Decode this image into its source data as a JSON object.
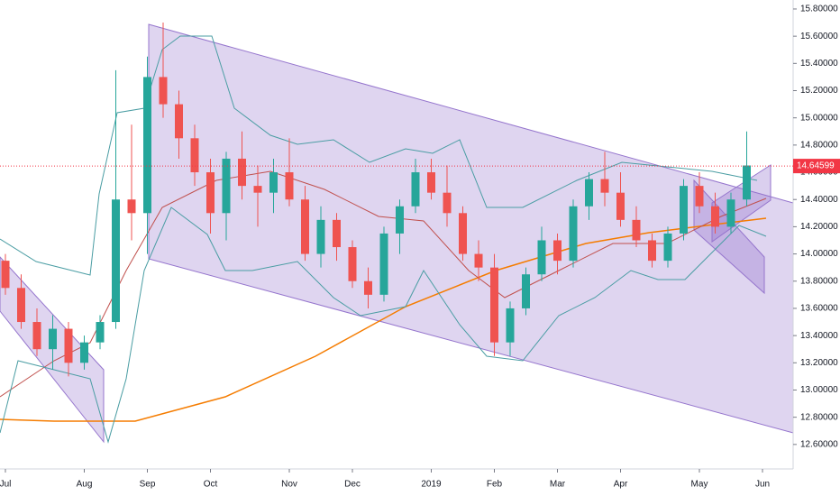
{
  "chart_data": {
    "type": "candlestick",
    "categories": [
      "Jul",
      null,
      null,
      null,
      null,
      "Aug",
      null,
      null,
      null,
      "Sep",
      null,
      null,
      null,
      "Oct",
      null,
      null,
      null,
      null,
      "Nov",
      null,
      null,
      null,
      "Dec",
      null,
      null,
      null,
      null,
      "2019",
      null,
      null,
      null,
      "Feb",
      null,
      null,
      null,
      "Mar",
      null,
      null,
      null,
      "Apr",
      null,
      null,
      null,
      null,
      "May",
      null,
      null,
      null,
      "Jun"
    ],
    "open": [
      13.95,
      13.75,
      13.5,
      13.3,
      13.45,
      13.2,
      13.35,
      13.5,
      14.4,
      14.3,
      15.3,
      15.1,
      14.85,
      14.6,
      14.3,
      14.7,
      14.5,
      14.45,
      14.6,
      14.4,
      14.0,
      14.25,
      14.05,
      13.8,
      13.7,
      14.15,
      14.35,
      14.6,
      14.45,
      14.3,
      14.0,
      13.9,
      13.35,
      13.6,
      13.85,
      14.1,
      13.95,
      14.35,
      14.55,
      14.45,
      14.25,
      14.1,
      13.95,
      14.15,
      14.5,
      14.35,
      14.2,
      14.4,
      null
    ],
    "high": [
      14.0,
      13.85,
      13.6,
      13.55,
      13.5,
      13.4,
      13.55,
      15.35,
      14.95,
      15.45,
      15.7,
      15.2,
      14.95,
      14.7,
      14.75,
      14.9,
      14.65,
      14.7,
      14.85,
      14.5,
      14.35,
      14.3,
      14.1,
      13.9,
      14.2,
      14.4,
      14.7,
      14.7,
      14.65,
      14.35,
      14.1,
      14.0,
      13.65,
      13.9,
      14.2,
      14.15,
      14.4,
      14.6,
      14.75,
      14.6,
      14.35,
      14.15,
      14.2,
      14.55,
      14.6,
      14.45,
      14.45,
      14.9,
      null
    ],
    "low": [
      13.7,
      13.45,
      13.25,
      13.15,
      13.1,
      13.15,
      13.3,
      13.45,
      14.1,
      14.0,
      15.0,
      14.7,
      14.5,
      14.15,
      14.1,
      14.4,
      14.2,
      14.3,
      14.35,
      13.95,
      13.9,
      13.95,
      13.75,
      13.6,
      13.65,
      14.0,
      14.3,
      14.4,
      14.2,
      13.95,
      13.8,
      13.25,
      13.25,
      13.55,
      13.8,
      13.85,
      13.9,
      14.25,
      14.35,
      14.2,
      14.05,
      13.9,
      13.9,
      14.1,
      14.3,
      14.15,
      14.15,
      14.35,
      null
    ],
    "close": [
      13.75,
      13.5,
      13.3,
      13.45,
      13.2,
      13.35,
      13.5,
      14.4,
      14.3,
      15.3,
      15.1,
      14.85,
      14.6,
      14.3,
      14.7,
      14.5,
      14.45,
      14.6,
      14.4,
      14.0,
      14.25,
      14.05,
      13.8,
      13.7,
      14.15,
      14.35,
      14.6,
      14.45,
      14.3,
      14.0,
      13.9,
      13.35,
      13.6,
      13.85,
      14.1,
      13.95,
      14.35,
      14.55,
      14.45,
      14.25,
      14.1,
      13.95,
      14.15,
      14.5,
      14.35,
      14.2,
      14.4,
      14.65,
      null
    ],
    "up_color": "#26a69a",
    "down_color": "#ef5350",
    "last_price": 14.64599,
    "last_price_color": "#f23645",
    "ylim": [
      12.42,
      15.866
    ],
    "yticks": [
      {
        "value": 12.6,
        "label": "12.60000"
      },
      {
        "value": 12.8,
        "label": "12.80000"
      },
      {
        "value": 13.0,
        "label": "13.00000"
      },
      {
        "value": 13.2,
        "label": "13.20000"
      },
      {
        "value": 13.4,
        "label": "13.40000"
      },
      {
        "value": 13.6,
        "label": "13.60000"
      },
      {
        "value": 13.8,
        "label": "13.80000"
      },
      {
        "value": 14.0,
        "label": "14.00000"
      },
      {
        "value": 14.2,
        "label": "14.20000"
      },
      {
        "value": 14.4,
        "label": "14.40000"
      },
      {
        "value": 14.6,
        "label": "14.60000"
      },
      {
        "value": 14.8,
        "label": "14.80000"
      },
      {
        "value": 15.0,
        "label": "15.00000"
      },
      {
        "value": 15.2,
        "label": "15.20000"
      },
      {
        "value": 15.4,
        "label": "15.40000"
      },
      {
        "value": 15.6,
        "label": "15.60000"
      },
      {
        "value": 15.8,
        "label": "15.80000"
      }
    ]
  }
}
